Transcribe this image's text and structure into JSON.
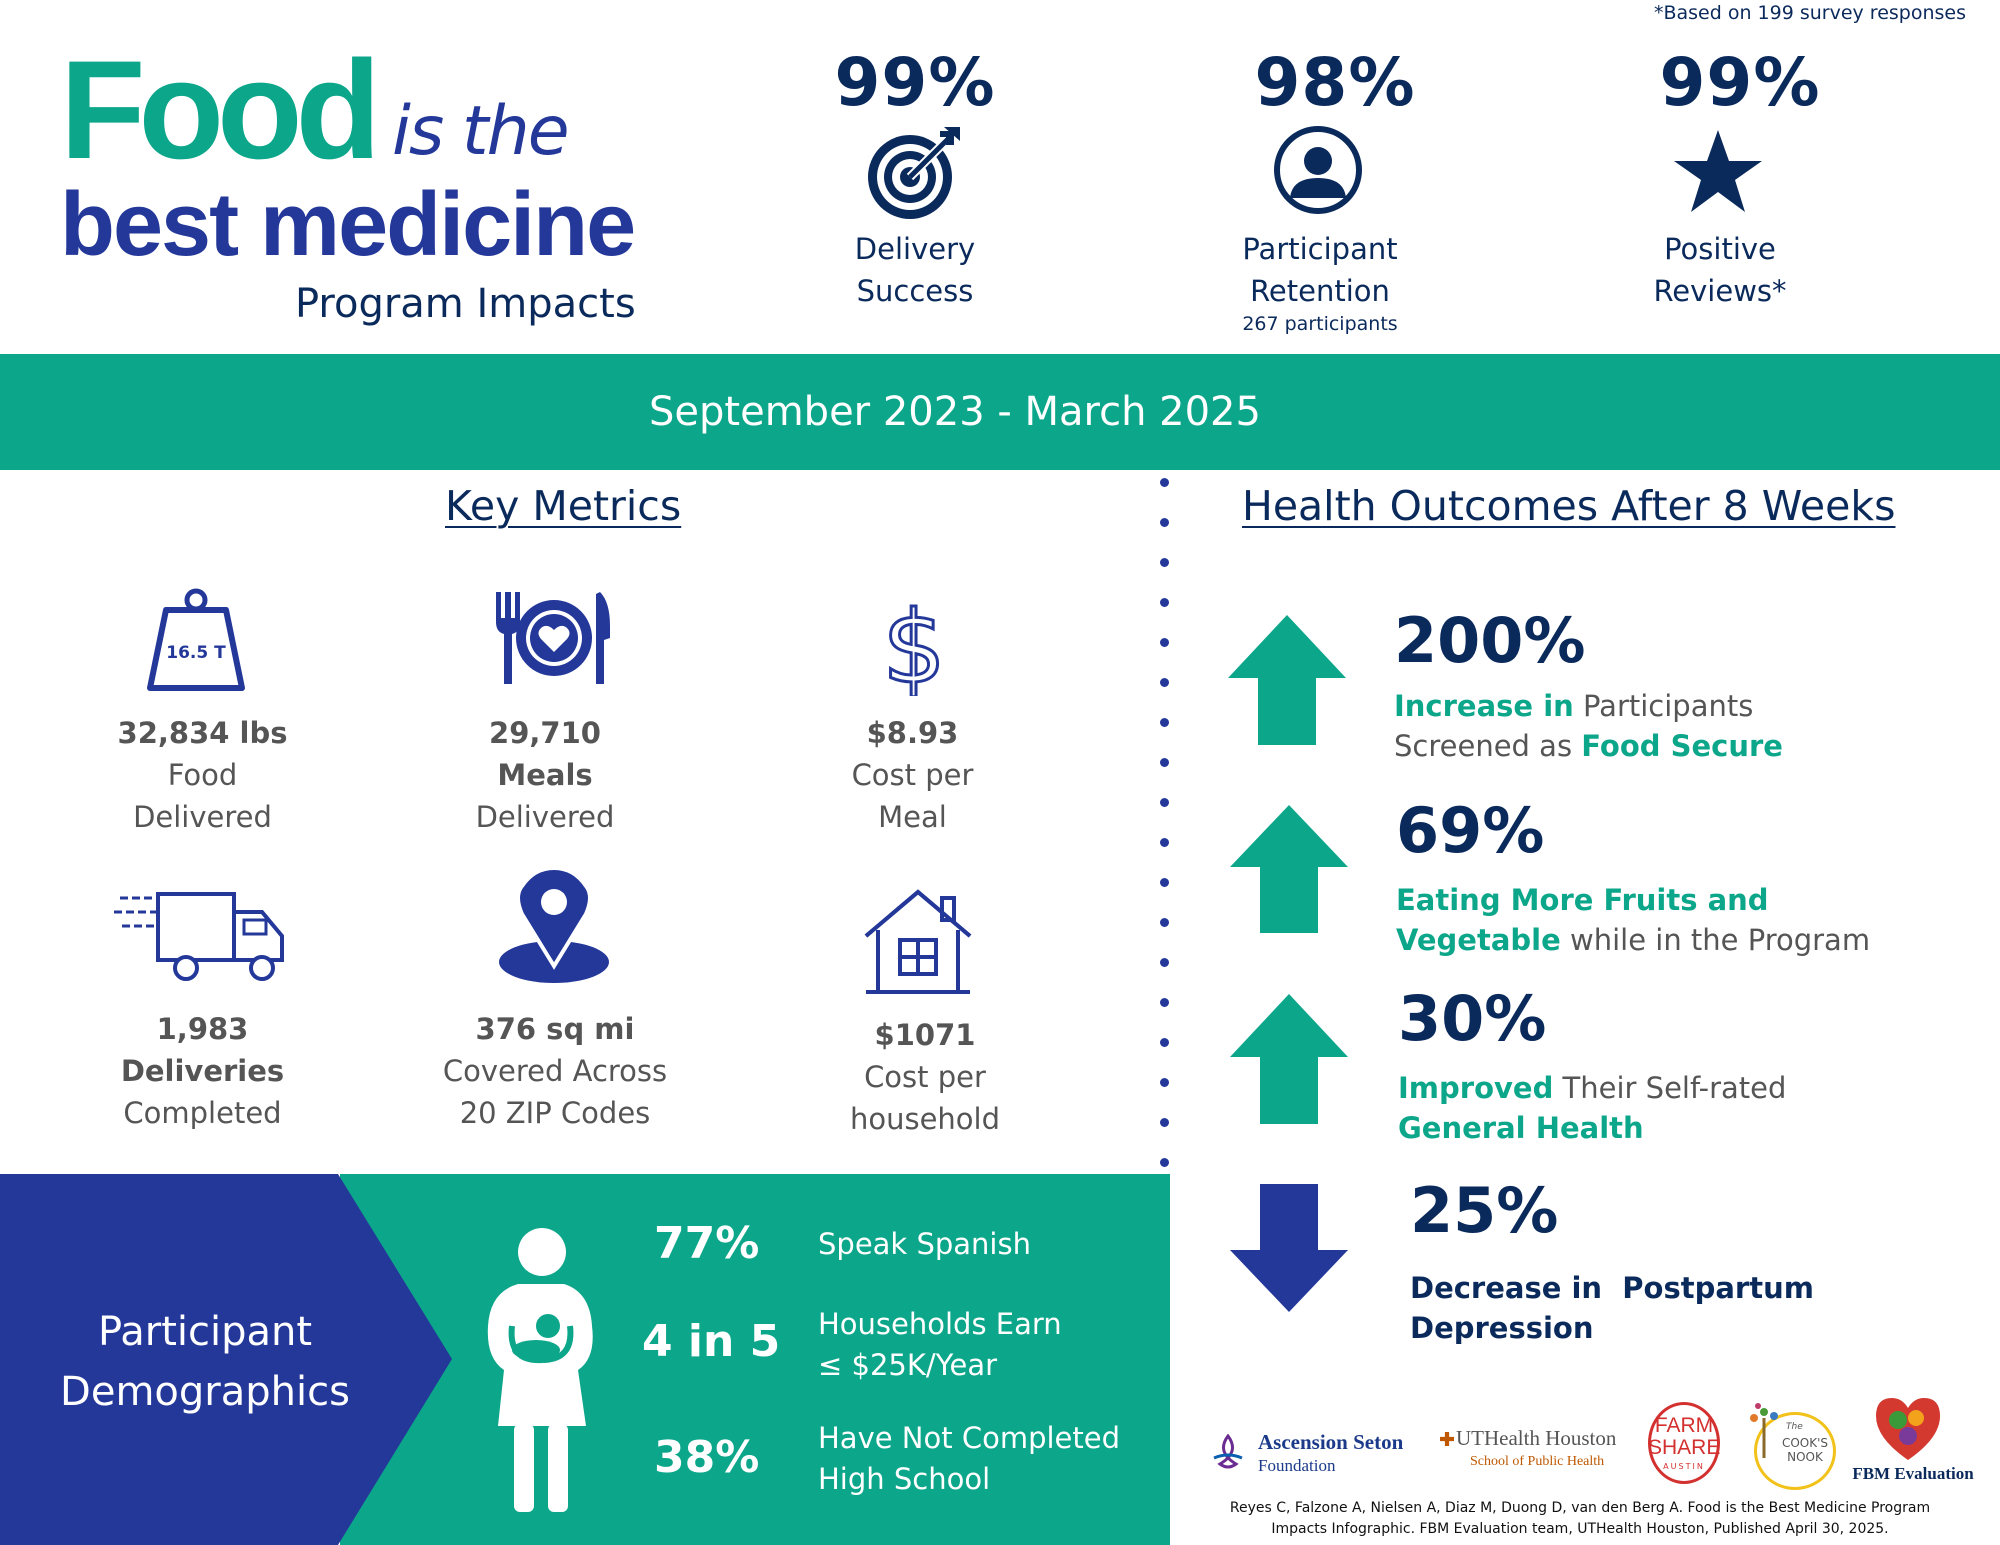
{
  "survey_note": "*Based on 199 survey responses",
  "title": {
    "food": "Food",
    "is_the": "is the",
    "best_medicine": "best medicine",
    "subtitle": "Program Impacts"
  },
  "kpis": [
    {
      "pct": "99%",
      "line1": "Delivery",
      "line2": "Success",
      "icon": "target-icon"
    },
    {
      "pct": "98%",
      "line1": "Participant",
      "line2": "Retention",
      "note": "267 participants",
      "icon": "person-icon"
    },
    {
      "pct": "99%",
      "line1": "Positive",
      "line2": "Reviews*",
      "icon": "star-icon"
    }
  ],
  "date_range": "September 2023 - March 2025",
  "key_metrics": {
    "heading": "Key Metrics",
    "items": [
      {
        "icon": "weight-icon",
        "icon_text": "16.5 T",
        "value": "32,834 lbs",
        "line2": "Food",
        "line3": "Delivered"
      },
      {
        "icon": "plate-icon",
        "value": "29,710",
        "line2": "Meals",
        "line3": "Delivered"
      },
      {
        "icon": "dollar-icon",
        "value": "$8.93",
        "line2": "Cost per",
        "line3": "Meal"
      },
      {
        "icon": "truck-icon",
        "value": "1,983",
        "line2": "Deliveries",
        "line3": "Completed"
      },
      {
        "icon": "location-pin-icon",
        "value": "376 sq mi",
        "line2": "Covered Across",
        "line3": "20 ZIP Codes"
      },
      {
        "icon": "house-icon",
        "value": "$1071",
        "line2": "Cost per",
        "line3": "household"
      }
    ]
  },
  "health_outcomes": {
    "heading": "Health Outcomes After 8 Weeks",
    "items": [
      {
        "direction": "up",
        "pct": "200%",
        "a": "Increase in",
        "b": " Participants",
        "c": "Screened as ",
        "d": "Food Secure"
      },
      {
        "direction": "up",
        "pct": "69%",
        "a": "Eating More Fruits and",
        "c": "Vegetable",
        "d": " while in the Program"
      },
      {
        "direction": "up",
        "pct": "30%",
        "a": "Improved",
        "b": " Their Self-rated",
        "c": "General Health"
      },
      {
        "direction": "down",
        "pct": "25%",
        "a": "Decrease in  Postpartum",
        "c": "Depression"
      }
    ]
  },
  "demographics": {
    "title_line1": "Participant",
    "title_line2": "Demographics",
    "items": [
      {
        "stat": "77%",
        "line1": "Speak Spanish"
      },
      {
        "stat": "4 in 5",
        "line1": "Households Earn",
        "line2": "≤ $25K/Year"
      },
      {
        "stat": "38%",
        "line1": "Have Not Completed",
        "line2": "High School"
      }
    ]
  },
  "logos": {
    "ascension_line1": "Ascension Seton",
    "ascension_line2": "Foundation",
    "uthealth_line1": "UTHealth Houston",
    "uthealth_line2": "School of Public Health",
    "farmshare_line1": "FARM",
    "farmshare_line2": "SHARE",
    "farmshare_line3": "AUSTIN",
    "cooks_line1": "The",
    "cooks_line2": "COOK'S",
    "cooks_line3": "NOOK",
    "fbm": "FBM Evaluation"
  },
  "citation_line1": "Reyes C, Falzone A, Nielsen A, Diaz M, Duong D, van den Berg A. Food is the Best Medicine Program",
  "citation_line2": "Impacts Infographic. FBM Evaluation team, UTHealth Houston, Published April 30, 2025.",
  "colors": {
    "teal": "#0ca68a",
    "navy": "#0b2a5c",
    "blue": "#24389a"
  }
}
